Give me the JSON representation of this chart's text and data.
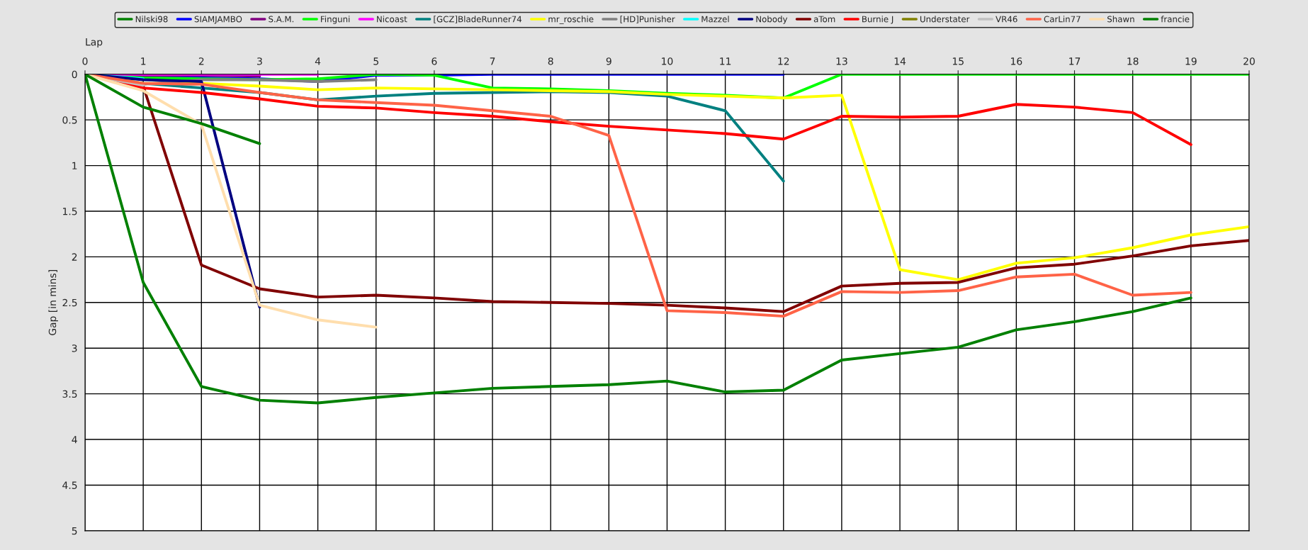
{
  "chart_data": {
    "type": "line",
    "xlabel": "Lap",
    "ylabel": "Gap [in mins]",
    "x": [
      0,
      1,
      2,
      3,
      4,
      5,
      6,
      7,
      8,
      9,
      10,
      11,
      12,
      13,
      14,
      15,
      16,
      17,
      18,
      19,
      20
    ],
    "xlim": [
      0,
      20
    ],
    "xticks": [
      0,
      1,
      2,
      3,
      4,
      5,
      6,
      7,
      8,
      9,
      10,
      11,
      12,
      13,
      14,
      15,
      16,
      17,
      18,
      19,
      20
    ],
    "ylim": [
      5,
      0
    ],
    "yticks": [
      0,
      0.5,
      1,
      1.5,
      2,
      2.5,
      3,
      3.5,
      4,
      4.5,
      5
    ],
    "grid": true,
    "legend": "top",
    "marker": "none",
    "line_style": "solid",
    "series": [
      {
        "name": "Nilski98",
        "color": "#008000",
        "values": [
          0,
          2.28,
          3.42,
          3.57,
          3.6,
          3.54,
          3.49,
          3.44,
          3.42,
          3.4,
          3.36,
          3.48,
          3.46,
          3.13,
          3.06,
          2.99,
          2.8,
          2.71,
          2.6,
          2.45,
          null
        ]
      },
      {
        "name": "SIAMJAMBO",
        "color": "#0000ff",
        "values": [
          0,
          0.03,
          0.04,
          0.05,
          0.08,
          0.01,
          0.01,
          0,
          0,
          0,
          0,
          0,
          0,
          null,
          null,
          null,
          null,
          null,
          null,
          null,
          null
        ]
      },
      {
        "name": "S.A.M.",
        "color": "#800080",
        "values": [
          0,
          0.01,
          0.01,
          0.02,
          null,
          null,
          null,
          null,
          null,
          null,
          null,
          null,
          null,
          null,
          null,
          null,
          null,
          null,
          null,
          null,
          null
        ]
      },
      {
        "name": "Finguni",
        "color": "#00ff00",
        "values": [
          0,
          0.04,
          0.05,
          0.06,
          0.05,
          0,
          0.01,
          0.15,
          0.16,
          0.18,
          0.21,
          0.23,
          0.26,
          0,
          0,
          0,
          0,
          0,
          0,
          0,
          0
        ]
      },
      {
        "name": "Nicoast",
        "color": "#ff00ff",
        "values": [
          0,
          0,
          0,
          0,
          0,
          null,
          null,
          null,
          null,
          null,
          null,
          null,
          null,
          null,
          null,
          null,
          null,
          null,
          null,
          null,
          null
        ]
      },
      {
        "name": "[GCZ]BladeRunner74",
        "color": "#008080",
        "values": [
          0,
          0.1,
          0.15,
          0.2,
          0.28,
          0.24,
          0.21,
          0.2,
          0.19,
          0.2,
          0.24,
          0.4,
          1.17,
          null,
          null,
          null,
          null,
          null,
          null,
          null,
          null
        ]
      },
      {
        "name": "mr_roschie",
        "color": "#ffff00",
        "values": [
          0,
          0.1,
          0.1,
          0.13,
          0.17,
          0.15,
          0.16,
          0.17,
          0.18,
          0.19,
          0.22,
          0.24,
          0.26,
          0.23,
          2.14,
          2.25,
          2.07,
          2.01,
          1.9,
          1.76,
          1.67
        ]
      },
      {
        "name": "[HD]Punisher",
        "color": "#808080",
        "values": [
          0,
          0.11,
          0.06,
          0.06,
          0.08,
          0.06,
          null,
          null,
          null,
          null,
          null,
          null,
          null,
          null,
          null,
          null,
          null,
          null,
          null,
          null,
          null
        ]
      },
      {
        "name": "Mazzel",
        "color": "#00ffff",
        "values": [
          0,
          0.05,
          null,
          null,
          null,
          null,
          null,
          null,
          null,
          null,
          null,
          null,
          null,
          null,
          null,
          null,
          null,
          null,
          null,
          null,
          null
        ]
      },
      {
        "name": "Nobody",
        "color": "#000080",
        "values": [
          0,
          0.06,
          0.08,
          2.55,
          null,
          null,
          null,
          null,
          null,
          null,
          null,
          null,
          null,
          null,
          null,
          null,
          null,
          null,
          null,
          null,
          null
        ]
      },
      {
        "name": "aTom",
        "color": "#800000",
        "values": [
          0,
          0.13,
          2.09,
          2.35,
          2.44,
          2.42,
          2.45,
          2.49,
          2.5,
          2.51,
          2.53,
          2.56,
          2.6,
          2.32,
          2.29,
          2.28,
          2.12,
          2.08,
          1.99,
          1.88,
          1.82
        ]
      },
      {
        "name": "Burnie J",
        "color": "#ff0000",
        "values": [
          0,
          0.15,
          0.2,
          0.27,
          0.35,
          0.37,
          0.42,
          0.46,
          0.52,
          0.57,
          0.61,
          0.65,
          0.71,
          0.46,
          0.47,
          0.46,
          0.33,
          0.36,
          0.42,
          0.77,
          null
        ]
      },
      {
        "name": "Understater",
        "color": "#808000",
        "values": [
          null,
          null,
          null,
          null,
          null,
          null,
          null,
          null,
          null,
          null,
          null,
          null,
          null,
          null,
          null,
          null,
          null,
          null,
          null,
          null,
          null
        ]
      },
      {
        "name": "VR46",
        "color": "#c0c0c0",
        "values": [
          0,
          0.12,
          null,
          null,
          null,
          null,
          null,
          null,
          null,
          null,
          null,
          null,
          null,
          null,
          null,
          null,
          null,
          null,
          null,
          null,
          null
        ]
      },
      {
        "name": "CarLin77",
        "color": "#ff6347",
        "values": [
          0,
          0.1,
          0.11,
          0.2,
          0.28,
          0.31,
          0.34,
          0.4,
          0.46,
          0.67,
          2.59,
          2.61,
          2.65,
          2.38,
          2.39,
          2.37,
          2.22,
          2.19,
          2.42,
          2.39,
          null
        ]
      },
      {
        "name": "Shawn",
        "color": "#ffdead",
        "values": [
          0,
          0.18,
          0.55,
          2.53,
          2.69,
          2.77,
          null,
          null,
          null,
          null,
          null,
          null,
          null,
          null,
          null,
          null,
          null,
          null,
          null,
          null,
          null
        ]
      },
      {
        "name": "francie",
        "color": "#008000",
        "values": [
          0,
          0.36,
          0.54,
          0.76,
          null,
          null,
          null,
          null,
          null,
          null,
          null,
          null,
          null,
          null,
          null,
          null,
          null,
          null,
          null,
          null,
          null
        ]
      }
    ]
  }
}
